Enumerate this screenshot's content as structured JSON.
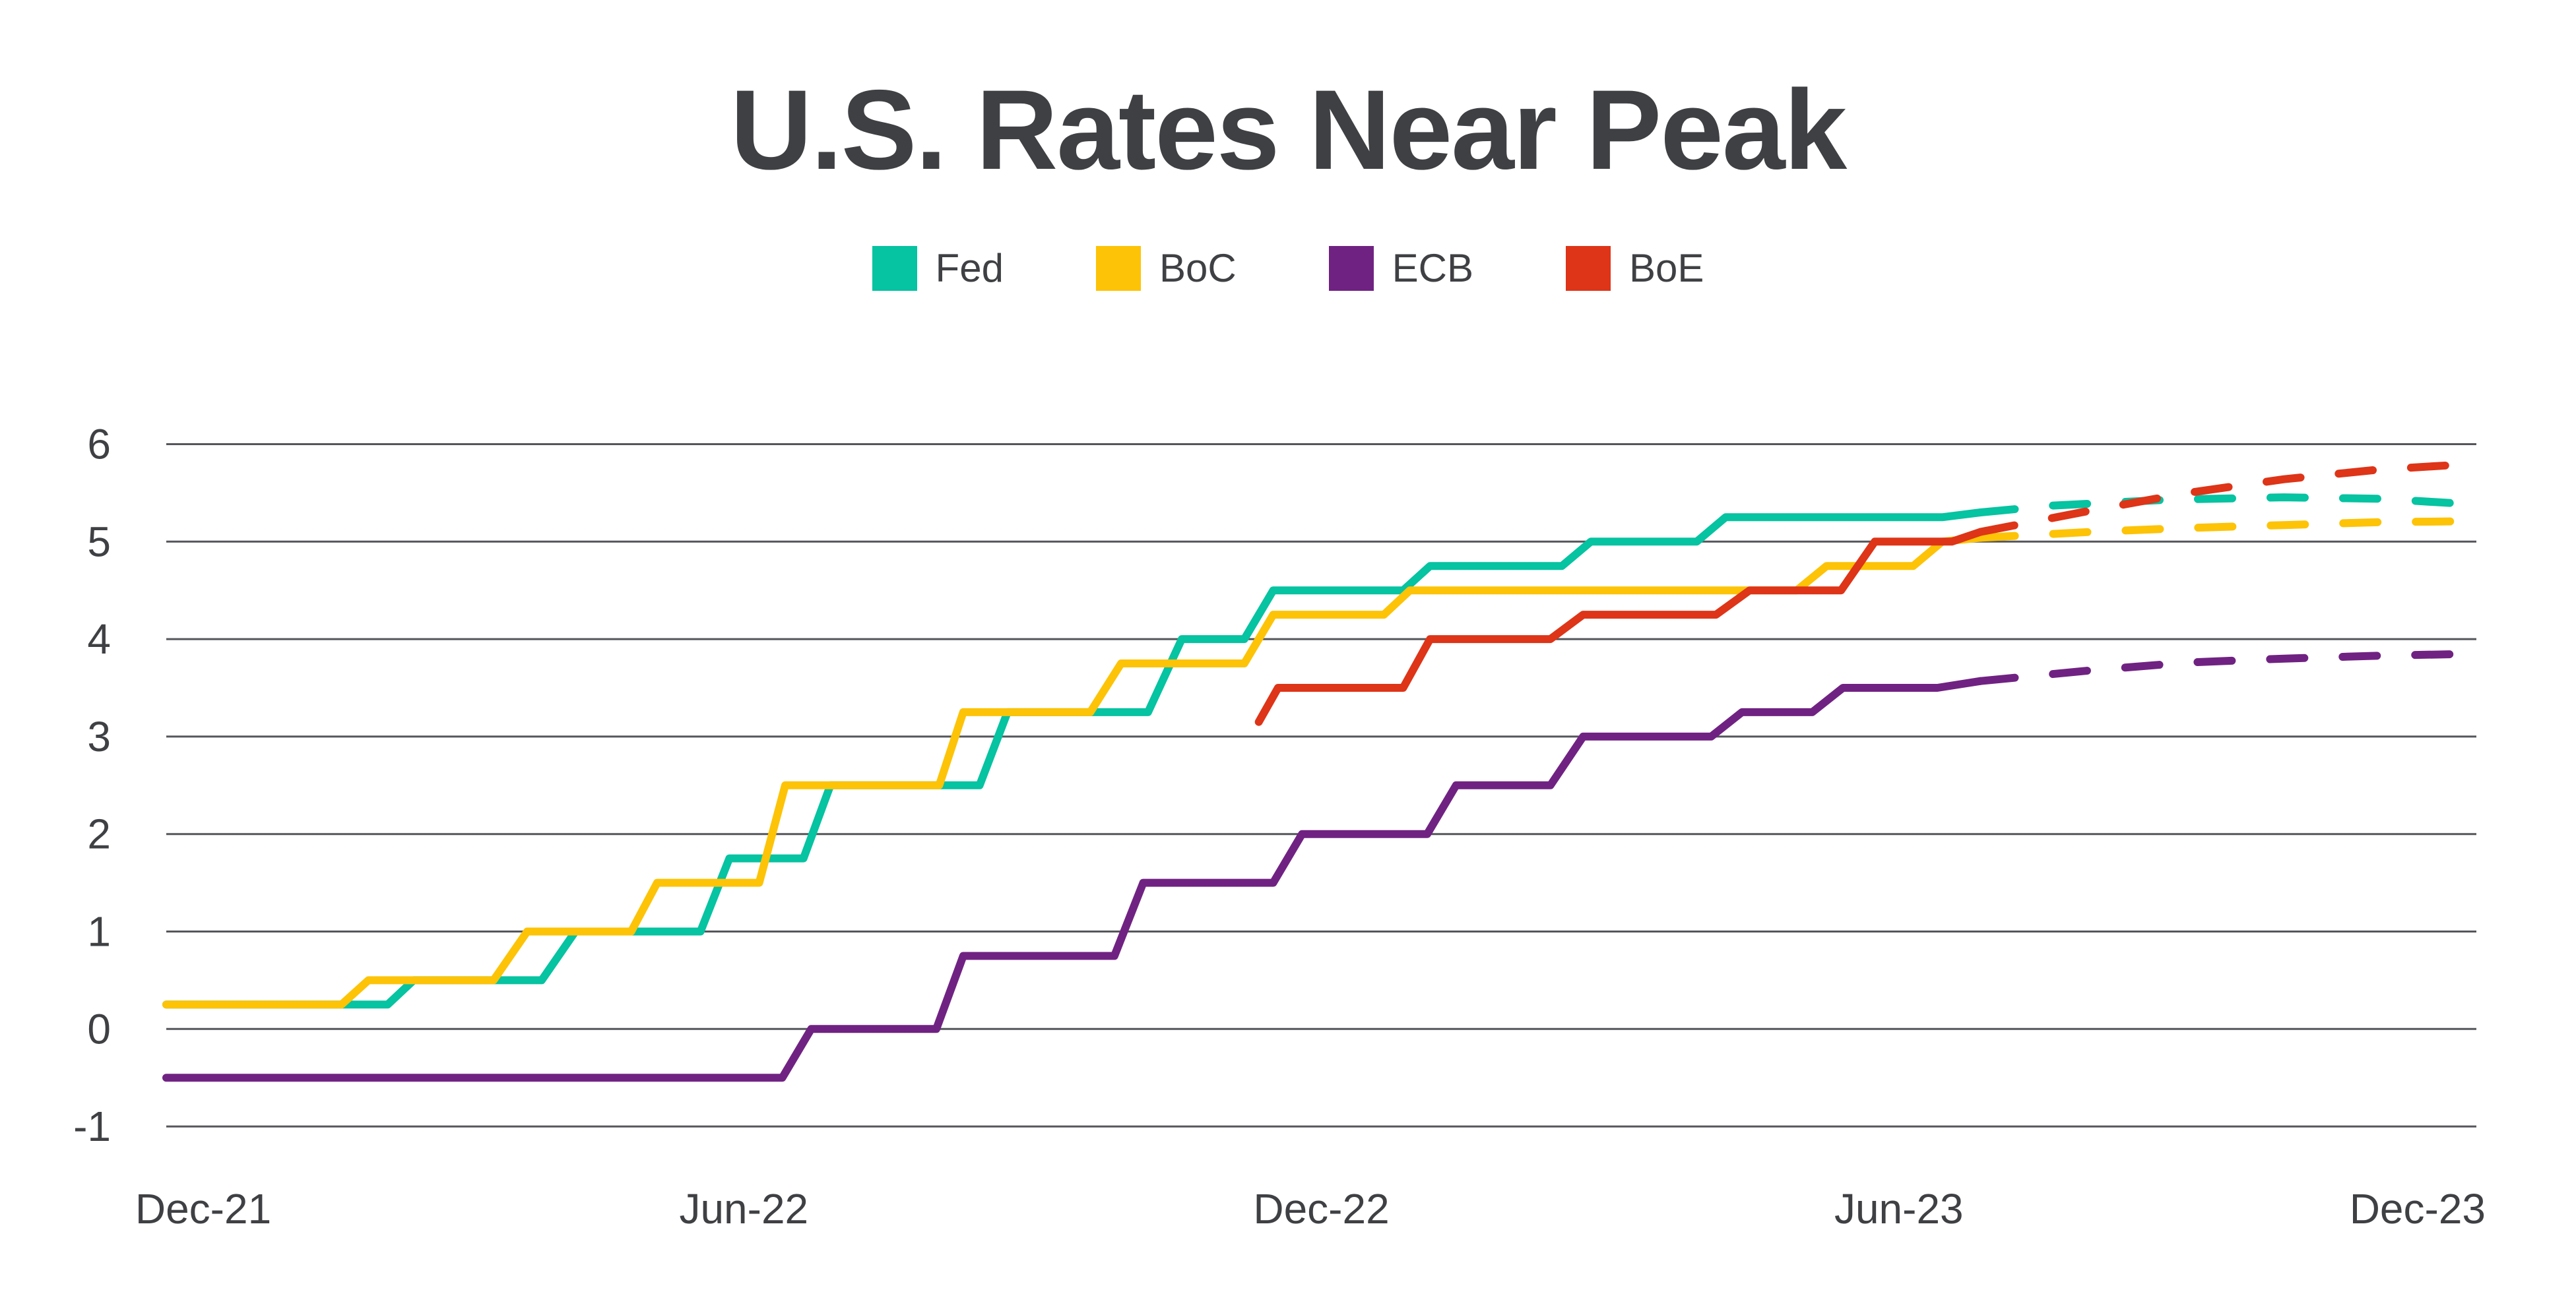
{
  "chart_data": {
    "type": "line",
    "title": "U.S. Rates Near Peak",
    "x_tick_labels": [
      "Dec-21",
      "Jun-22",
      "Dec-22",
      "Jun-23",
      "Dec-23"
    ],
    "x_tick_months": [
      0,
      6,
      12,
      18,
      24
    ],
    "x_unit": "months since Dec-2021",
    "x_months_span": 24,
    "y_tick_labels": [
      "6",
      "5",
      "4",
      "3",
      "2",
      "1",
      "0",
      "-1"
    ],
    "y_ticks": [
      6,
      5,
      4,
      3,
      2,
      1,
      0,
      -1
    ],
    "ylim": [
      -1,
      6
    ],
    "grid": "on",
    "legend_position": "top",
    "solid_style": "historical policy rate (%)",
    "forecast_style": "dashed market-implied forecast",
    "colors": {
      "grid": "#55565a",
      "text": "#3f4043",
      "background": "#ffffff"
    },
    "series": [
      {
        "name": "Fed",
        "color": "#06c3a1",
        "solid": [
          [
            0,
            0.25
          ],
          [
            2.3,
            0.25
          ],
          [
            2.57,
            0.5
          ],
          [
            3.9,
            0.5
          ],
          [
            4.25,
            1.0
          ],
          [
            5.55,
            1.0
          ],
          [
            5.85,
            1.75
          ],
          [
            6.62,
            1.75
          ],
          [
            6.9,
            2.5
          ],
          [
            8.45,
            2.5
          ],
          [
            8.74,
            3.25
          ],
          [
            10.2,
            3.25
          ],
          [
            10.55,
            4.0
          ],
          [
            11.2,
            4.0
          ],
          [
            11.5,
            4.5
          ],
          [
            12.85,
            4.5
          ],
          [
            13.13,
            4.75
          ],
          [
            14.5,
            4.75
          ],
          [
            14.8,
            5.0
          ],
          [
            15.9,
            5.0
          ],
          [
            16.2,
            5.25
          ],
          [
            18.45,
            5.25
          ],
          [
            18.85,
            5.3
          ]
        ],
        "forecast": [
          [
            18.85,
            5.3
          ],
          [
            19.6,
            5.37
          ],
          [
            20.8,
            5.43
          ],
          [
            22,
            5.455
          ],
          [
            23,
            5.44
          ],
          [
            24,
            5.38
          ]
        ]
      },
      {
        "name": "BoC",
        "color": "#fdc306",
        "solid": [
          [
            0,
            0.25
          ],
          [
            1.82,
            0.25
          ],
          [
            2.1,
            0.5
          ],
          [
            3.4,
            0.5
          ],
          [
            3.75,
            1.0
          ],
          [
            4.83,
            1.0
          ],
          [
            5.1,
            1.5
          ],
          [
            6.16,
            1.5
          ],
          [
            6.43,
            2.5
          ],
          [
            8.03,
            2.5
          ],
          [
            8.28,
            3.25
          ],
          [
            9.6,
            3.25
          ],
          [
            9.92,
            3.75
          ],
          [
            11.2,
            3.75
          ],
          [
            11.5,
            4.25
          ],
          [
            12.65,
            4.25
          ],
          [
            12.92,
            4.5
          ],
          [
            16.94,
            4.5
          ],
          [
            17.25,
            4.75
          ],
          [
            18.15,
            4.75
          ],
          [
            18.45,
            5.0
          ],
          [
            18.85,
            5.04
          ]
        ],
        "forecast": [
          [
            18.85,
            5.04
          ],
          [
            20,
            5.1
          ],
          [
            21,
            5.14
          ],
          [
            22,
            5.17
          ],
          [
            23,
            5.2
          ],
          [
            24,
            5.21
          ]
        ]
      },
      {
        "name": "ECB",
        "color": "#702282",
        "solid": [
          [
            0,
            -0.5
          ],
          [
            6.4,
            -0.5
          ],
          [
            6.7,
            0
          ],
          [
            8.0,
            0
          ],
          [
            8.28,
            0.75
          ],
          [
            9.85,
            0.75
          ],
          [
            10.15,
            1.5
          ],
          [
            11.5,
            1.5
          ],
          [
            11.8,
            2.0
          ],
          [
            13.1,
            2.0
          ],
          [
            13.4,
            2.5
          ],
          [
            14.38,
            2.5
          ],
          [
            14.72,
            3.0
          ],
          [
            16.05,
            3.0
          ],
          [
            16.37,
            3.25
          ],
          [
            17.1,
            3.25
          ],
          [
            17.42,
            3.5
          ],
          [
            18.4,
            3.5
          ],
          [
            18.85,
            3.57
          ]
        ],
        "forecast": [
          [
            18.85,
            3.57
          ],
          [
            20,
            3.68
          ],
          [
            21,
            3.76
          ],
          [
            22,
            3.8
          ],
          [
            23,
            3.83
          ],
          [
            24,
            3.85
          ]
        ]
      },
      {
        "name": "BoE",
        "color": "#de3418",
        "solid": [
          [
            11.35,
            3.15
          ],
          [
            11.55,
            3.5
          ],
          [
            12.85,
            3.5
          ],
          [
            13.13,
            4.0
          ],
          [
            14.38,
            4.0
          ],
          [
            14.72,
            4.25
          ],
          [
            16.1,
            4.25
          ],
          [
            16.45,
            4.5
          ],
          [
            17.4,
            4.5
          ],
          [
            17.75,
            5.0
          ],
          [
            18.55,
            5.0
          ],
          [
            18.85,
            5.1
          ]
        ],
        "forecast": [
          [
            18.85,
            5.1
          ],
          [
            20,
            5.32
          ],
          [
            21,
            5.5
          ],
          [
            22,
            5.64
          ],
          [
            23,
            5.74
          ],
          [
            24,
            5.8
          ]
        ]
      }
    ]
  }
}
